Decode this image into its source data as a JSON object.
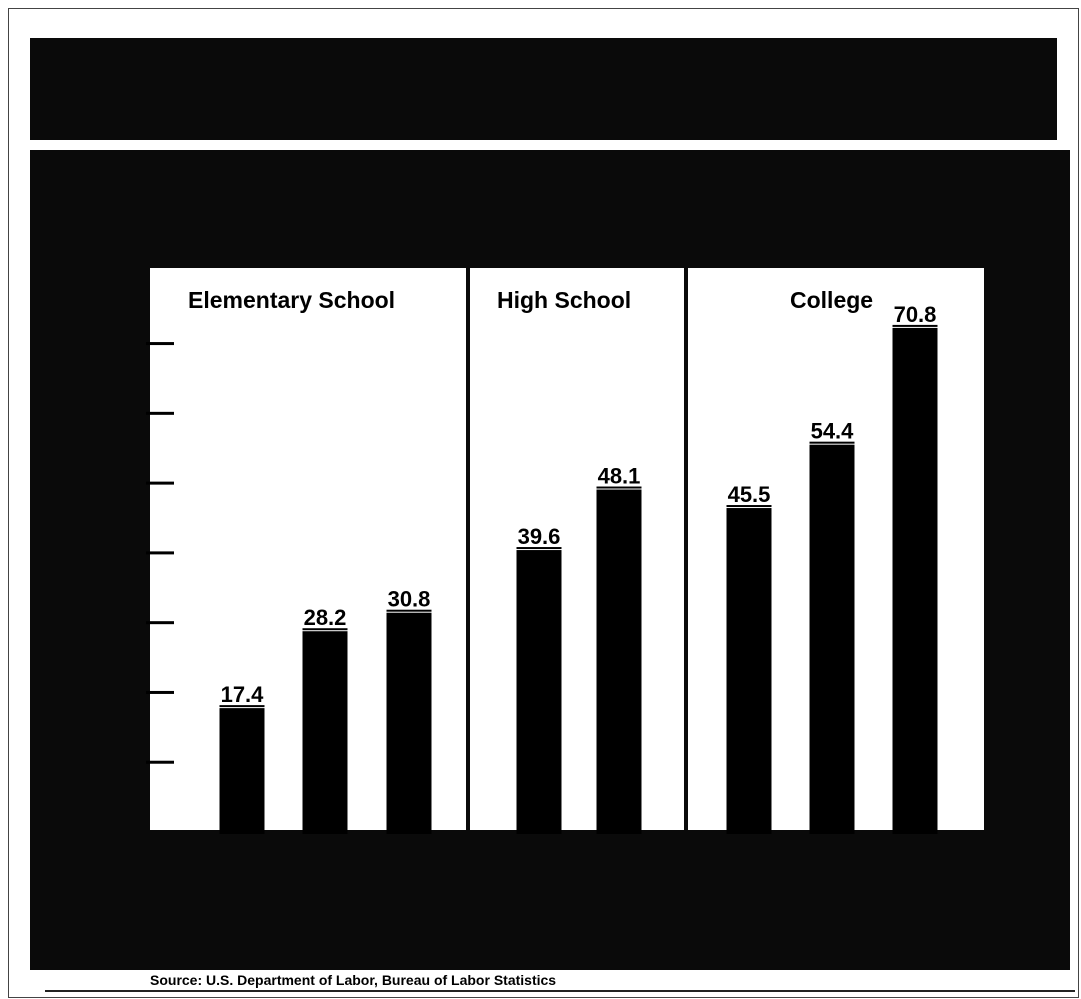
{
  "chart_data": {
    "type": "bar",
    "title": "",
    "xlabel": "",
    "ylabel": "",
    "ylim": [
      0,
      80
    ],
    "grid": false,
    "groups": [
      {
        "name": "Elementary School",
        "values": [
          17.4,
          28.2,
          30.8
        ],
        "labels": [
          "17.4",
          "28.2",
          "30.8"
        ]
      },
      {
        "name": "High School",
        "values": [
          39.6,
          48.1
        ],
        "labels": [
          "39.6",
          "48.1"
        ]
      },
      {
        "name": "College",
        "values": [
          45.5,
          54.4,
          70.8
        ],
        "labels": [
          "45.5",
          "54.4",
          "70.8"
        ]
      }
    ],
    "bar_color": "#000000",
    "panel_color": "#ffffff",
    "background_color": "#0a0a0a"
  },
  "source": "Source: U.S. Department of Labor, Bureau of Labor Statistics"
}
